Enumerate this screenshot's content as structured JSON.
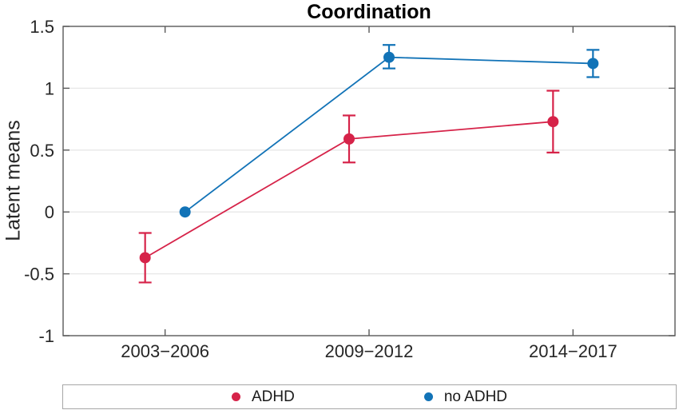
{
  "chart_data": {
    "type": "line",
    "title": "Coordination",
    "xlabel": "",
    "ylabel": "Latent means",
    "categories": [
      "2003−2006",
      "2009−2012",
      "2014−2017"
    ],
    "ylim": [
      -1,
      1.5
    ],
    "yticks": [
      -1,
      -0.5,
      0,
      0.5,
      1,
      1.5
    ],
    "ytick_labels": [
      "-1",
      "-0.5",
      "0",
      "0.5",
      "1",
      "1.5"
    ],
    "grid": "horizontal",
    "legend_position": "bottom-outside-box",
    "series": [
      {
        "name": "ADHD",
        "color": "#d62349",
        "means": [
          -0.37,
          0.59,
          0.73
        ],
        "ci_low": [
          -0.57,
          0.4,
          0.48
        ],
        "ci_high": [
          -0.17,
          0.78,
          0.98
        ]
      },
      {
        "name": "no ADHD",
        "color": "#1273b7",
        "means": [
          0.0,
          1.25,
          1.2
        ],
        "ci_low": [
          0.0,
          1.16,
          1.09
        ],
        "ci_high": [
          0.0,
          1.35,
          1.31
        ]
      }
    ],
    "axis_color": "#595959",
    "grid_color": "#e7e7e7",
    "text_color": "#262626"
  }
}
